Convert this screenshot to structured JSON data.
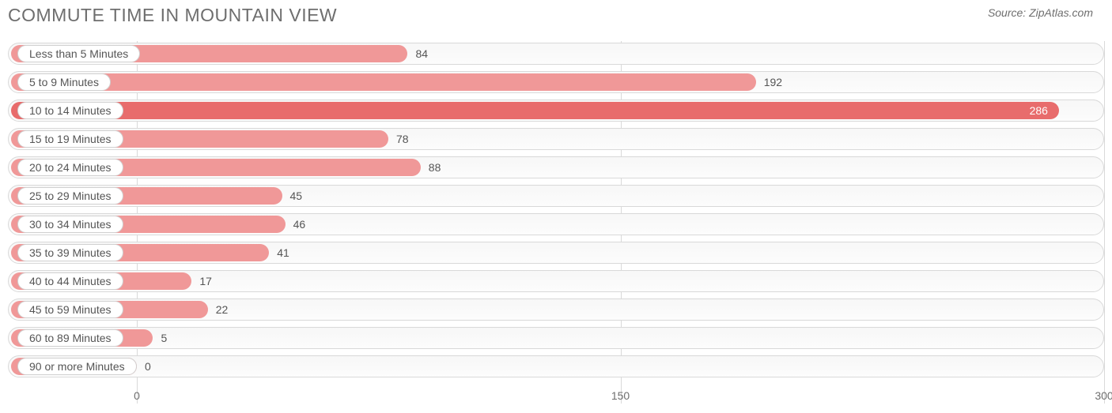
{
  "header": {
    "title": "Commute Time in Mountain View",
    "source": "Source: ZipAtlas.com"
  },
  "chart": {
    "type": "bar-horizontal",
    "bar_color": "#f09898",
    "bar_color_dark": "#e86c6c",
    "axis_min": -40,
    "axis_max": 300,
    "ticks": [
      0,
      150,
      300
    ],
    "rows": [
      {
        "label": "Less than 5 Minutes",
        "value": 84
      },
      {
        "label": "5 to 9 Minutes",
        "value": 192
      },
      {
        "label": "10 to 14 Minutes",
        "value": 286
      },
      {
        "label": "15 to 19 Minutes",
        "value": 78
      },
      {
        "label": "20 to 24 Minutes",
        "value": 88
      },
      {
        "label": "25 to 29 Minutes",
        "value": 45
      },
      {
        "label": "30 to 34 Minutes",
        "value": 46
      },
      {
        "label": "35 to 39 Minutes",
        "value": 41
      },
      {
        "label": "40 to 44 Minutes",
        "value": 17
      },
      {
        "label": "45 to 59 Minutes",
        "value": 22
      },
      {
        "label": "60 to 89 Minutes",
        "value": 5
      },
      {
        "label": "90 or more Minutes",
        "value": 0
      }
    ],
    "value_inside_threshold": 270,
    "grid_color": "#d9d9d9",
    "track_border": "#d9d9d9",
    "text_color": "#555555"
  }
}
